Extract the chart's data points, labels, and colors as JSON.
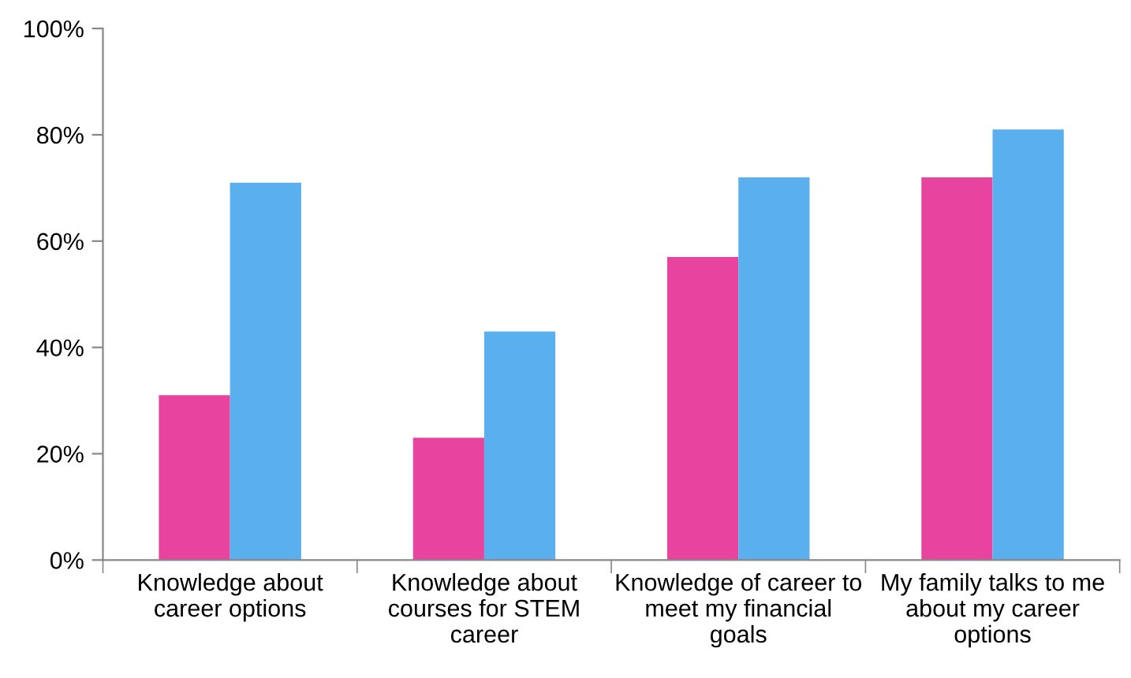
{
  "chart_data": {
    "type": "bar",
    "categories": [
      "Knowledge about\ncareer options",
      "Knowledge about\ncourses for STEM\ncareer",
      "Knowledge of career to\nmeet my financial\ngoals",
      "My family talks to me\nabout my career\noptions"
    ],
    "series": [
      {
        "color": "#e8449f",
        "values": [
          31,
          23,
          57,
          72
        ]
      },
      {
        "color": "#5ab0ee",
        "values": [
          71,
          43,
          72,
          81
        ]
      }
    ],
    "ylim": [
      0,
      100
    ],
    "yticks": [
      {
        "value": 0,
        "label": "0%"
      },
      {
        "value": 20,
        "label": "20%"
      },
      {
        "value": 40,
        "label": "40%"
      },
      {
        "value": 60,
        "label": "60%"
      },
      {
        "value": 80,
        "label": "80%"
      },
      {
        "value": 100,
        "label": "100%"
      }
    ],
    "grid": false,
    "legend": false
  }
}
